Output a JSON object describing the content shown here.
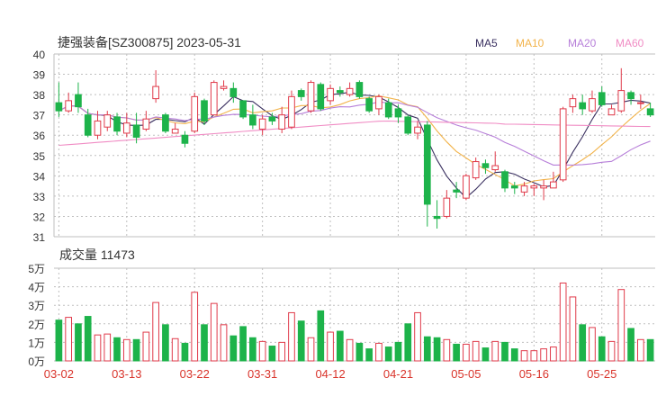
{
  "title": "捷强装备[SZ300875] 2023-05-31",
  "legend": [
    {
      "label": "MA5",
      "color": "#3a3060"
    },
    {
      "label": "MA10",
      "color": "#f2b34a"
    },
    {
      "label": "MA20",
      "color": "#b77fd9"
    },
    {
      "label": "MA60",
      "color": "#f08cc4"
    }
  ],
  "colors": {
    "up": "#e03a4a",
    "down": "#1db34a",
    "grid": "#bfbfbf",
    "axis": "#333333",
    "date": "#d9342b"
  },
  "volume_label": "成交量 11473",
  "chart_data": {
    "type": "candlestick",
    "title": "捷强装备[SZ300875] 2023-05-31",
    "ylim": [
      31,
      40
    ],
    "yticks": [
      "31",
      "32",
      "33",
      "34",
      "35",
      "36",
      "37",
      "38",
      "39",
      "40"
    ],
    "vol_ylim": [
      0,
      50000
    ],
    "vol_yticks": [
      "0万",
      "1万",
      "2万",
      "3万",
      "4万",
      "5万"
    ],
    "xtick_labels": [
      {
        "label": "03-02",
        "index": 0
      },
      {
        "label": "03-13",
        "index": 7
      },
      {
        "label": "03-22",
        "index": 14
      },
      {
        "label": "03-31",
        "index": 21
      },
      {
        "label": "04-12",
        "index": 28
      },
      {
        "label": "04-21",
        "index": 35
      },
      {
        "label": "05-05",
        "index": 42
      },
      {
        "label": "05-16",
        "index": 49
      },
      {
        "label": "05-25",
        "index": 56
      }
    ],
    "candles": [
      [
        37.6,
        37.2,
        38.6,
        36.9
      ],
      [
        37.2,
        37.7,
        38.1,
        37.1
      ],
      [
        38.0,
        37.4,
        38.6,
        37.1
      ],
      [
        37.0,
        36.0,
        37.3,
        35.9
      ],
      [
        36.0,
        36.7,
        37.2,
        35.8
      ],
      [
        36.4,
        37.0,
        37.2,
        36.2
      ],
      [
        36.9,
        36.2,
        37.1,
        36.0
      ],
      [
        36.1,
        36.6,
        37.1,
        35.9
      ],
      [
        36.5,
        35.9,
        37.1,
        35.6
      ],
      [
        36.3,
        36.8,
        37.2,
        36.2
      ],
      [
        37.8,
        38.4,
        39.2,
        37.6
      ],
      [
        37.0,
        36.2,
        37.1,
        36.1
      ],
      [
        36.1,
        36.3,
        36.6,
        36.1
      ],
      [
        36.0,
        35.6,
        36.2,
        35.4
      ],
      [
        36.2,
        37.9,
        38.1,
        36.1
      ],
      [
        37.7,
        36.7,
        37.8,
        36.5
      ],
      [
        37.0,
        38.6,
        38.7,
        37.0
      ],
      [
        38.3,
        38.4,
        38.7,
        38.2
      ],
      [
        38.3,
        37.9,
        38.6,
        37.6
      ],
      [
        37.7,
        36.9,
        37.7,
        36.8
      ],
      [
        37.0,
        36.5,
        37.5,
        36.3
      ],
      [
        36.3,
        36.8,
        37.0,
        36.0
      ],
      [
        36.9,
        36.7,
        37.1,
        36.5
      ],
      [
        36.3,
        37.0,
        37.4,
        36.1
      ],
      [
        36.4,
        37.9,
        38.2,
        36.3
      ],
      [
        38.2,
        37.9,
        38.3,
        37.7
      ],
      [
        37.2,
        38.6,
        38.7,
        37.1
      ],
      [
        38.5,
        37.3,
        38.6,
        37.2
      ],
      [
        37.7,
        38.3,
        38.5,
        37.5
      ],
      [
        38.2,
        38.1,
        38.4,
        37.9
      ],
      [
        38.0,
        38.3,
        38.6,
        37.9
      ],
      [
        38.6,
        37.9,
        38.7,
        37.8
      ],
      [
        37.8,
        37.2,
        37.9,
        37.1
      ],
      [
        37.3,
        37.9,
        38.0,
        37.0
      ],
      [
        37.6,
        36.9,
        37.8,
        36.8
      ],
      [
        37.3,
        36.9,
        37.5,
        36.6
      ],
      [
        36.9,
        36.1,
        37.0,
        36.0
      ],
      [
        36.1,
        36.4,
        36.7,
        35.8
      ],
      [
        36.5,
        32.6,
        36.7,
        31.5
      ],
      [
        32.0,
        31.9,
        32.8,
        31.4
      ],
      [
        32.0,
        32.9,
        33.3,
        31.9
      ],
      [
        33.3,
        33.2,
        33.7,
        32.9
      ],
      [
        32.9,
        34.0,
        34.1,
        32.8
      ],
      [
        33.9,
        34.7,
        34.9,
        33.8
      ],
      [
        34.6,
        34.4,
        34.8,
        34.1
      ],
      [
        34.3,
        34.5,
        35.2,
        34.2
      ],
      [
        34.2,
        33.4,
        34.3,
        33.2
      ],
      [
        33.5,
        33.4,
        33.7,
        33.1
      ],
      [
        33.2,
        33.5,
        33.7,
        33.0
      ],
      [
        33.4,
        33.5,
        33.6,
        33.0
      ],
      [
        33.4,
        33.5,
        33.8,
        32.8
      ],
      [
        33.4,
        33.7,
        34.2,
        33.4
      ],
      [
        33.8,
        37.3,
        37.4,
        33.7
      ],
      [
        37.4,
        37.8,
        38.0,
        37.1
      ],
      [
        37.6,
        37.3,
        38.0,
        37.0
      ],
      [
        37.2,
        37.8,
        38.2,
        37.1
      ],
      [
        38.1,
        37.5,
        38.4,
        37.4
      ],
      [
        37.0,
        37.3,
        37.5,
        37.0
      ],
      [
        37.2,
        38.2,
        39.3,
        37.1
      ],
      [
        38.1,
        37.8,
        38.2,
        37.5
      ],
      [
        37.6,
        37.6,
        38.0,
        37.3
      ],
      [
        37.3,
        37.0,
        37.6,
        36.9
      ]
    ],
    "volumes": [
      22000,
      23500,
      20000,
      24000,
      14000,
      14500,
      12500,
      11500,
      11500,
      15500,
      31500,
      19500,
      12000,
      9500,
      37000,
      19500,
      31000,
      19500,
      13500,
      18500,
      12500,
      10500,
      8000,
      10000,
      26000,
      21500,
      12500,
      27000,
      15500,
      16000,
      11500,
      9500,
      6500,
      9500,
      7500,
      10000,
      20000,
      26000,
      13000,
      12500,
      11500,
      9000,
      9000,
      10500,
      7000,
      10500,
      10000,
      6500,
      5500,
      5500,
      6500,
      7500,
      42000,
      34500,
      19500,
      18000,
      13000,
      10500,
      38500,
      17500,
      11500,
      11500
    ]
  }
}
